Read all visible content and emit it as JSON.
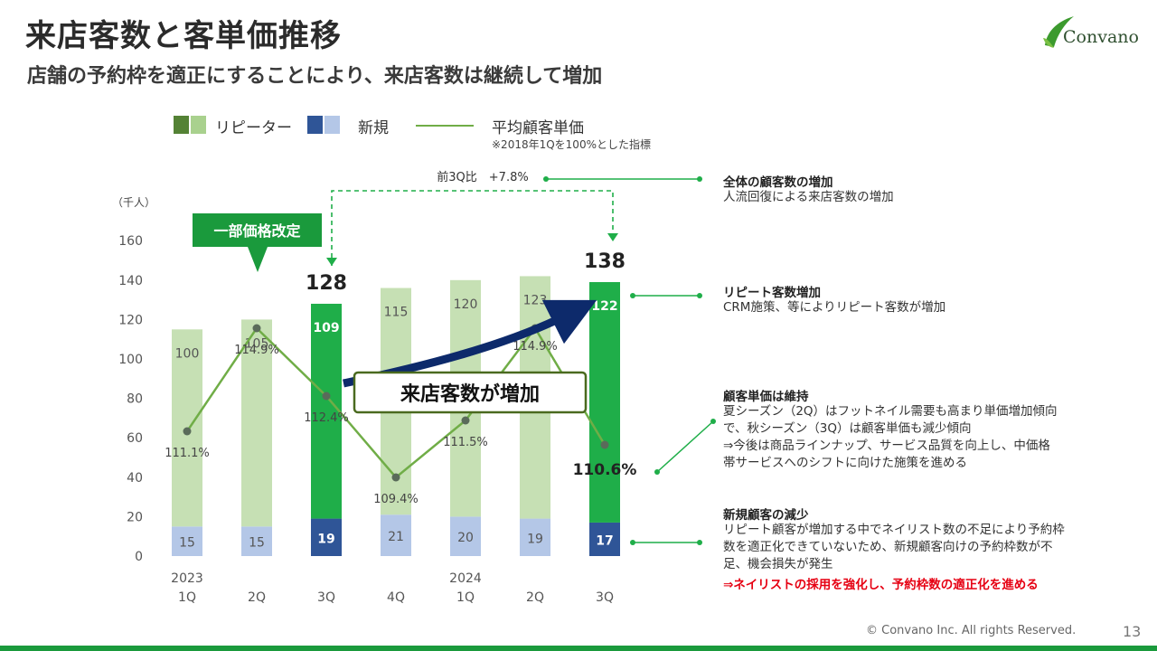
{
  "header": {
    "title": "来店客数と客単価推移",
    "subtitle": "店舗の予約枠を適正にすることにより、来店客数は継続して増加",
    "logo_text": "Convano"
  },
  "legend": {
    "repeater": "リピーター",
    "new": "新規",
    "avg_price": "平均顧客単価",
    "note": "※2018年1Qを100%とした指標"
  },
  "chart_data": {
    "type": "bar",
    "unit_label": "（千人）",
    "ylim": [
      0,
      160
    ],
    "yticks": [
      0,
      20,
      40,
      60,
      80,
      100,
      120,
      140,
      160
    ],
    "categories": [
      "1Q",
      "2Q",
      "3Q",
      "4Q",
      "1Q",
      "2Q",
      "3Q"
    ],
    "year_labels": [
      "2023",
      "",
      "",
      "",
      "2024",
      "",
      ""
    ],
    "series": [
      {
        "name": "新規",
        "values": [
          15,
          15,
          19,
          21,
          20,
          19,
          17
        ]
      },
      {
        "name": "リピーター",
        "values": [
          100,
          105,
          109,
          115,
          120,
          123,
          122
        ]
      }
    ],
    "totals": [
      "",
      "",
      "128",
      "",
      "",
      "",
      "138"
    ],
    "highlight": [
      false,
      false,
      true,
      false,
      false,
      false,
      true
    ],
    "line": {
      "name": "平均顧客単価",
      "values": [
        111.1,
        114.9,
        112.4,
        109.4,
        111.5,
        114.9,
        110.6
      ],
      "labels": [
        "111.1%",
        "114.9%",
        "112.4%",
        "109.4%",
        "111.5%",
        "114.9%",
        "110.6%"
      ]
    },
    "colors": {
      "rep_light": "#c6e0b4",
      "rep_dark": "#1fae49",
      "new_light": "#b4c7e7",
      "new_dark": "#2f5597",
      "line": "#70ad47",
      "marker": "#5a6b5a",
      "arrow": "#0d2a6b"
    }
  },
  "callouts": {
    "price_revision": "一部価格改定",
    "qoq": "前3Q比　+7.8%",
    "visitors_up": "来店客数が増加"
  },
  "annotations": [
    {
      "title": "全体の顧客数の増加",
      "lines": [
        "人流回復による来店客数の増加"
      ],
      "red": ""
    },
    {
      "title": "リピート客数増加",
      "lines": [
        "CRM施策、等によりリピート客数が増加"
      ],
      "red": ""
    },
    {
      "title": "顧客単価は維持",
      "lines": [
        "夏シーズン（2Q）はフットネイル需要も高まり単価増加傾向",
        "で、秋シーズン（3Q）は顧客単価も減少傾向",
        "⇒今後は商品ラインナップ、サービス品質を向上し、中価格",
        "帯サービスへのシフトに向けた施策を進める"
      ],
      "red": ""
    },
    {
      "title": "新規顧客の減少",
      "lines": [
        "リピート顧客が増加する中でネイリスト数の不足により予約枠",
        "数を適正化できていないため、新規顧客向けの予約枠数が不",
        "足、機会損失が発生"
      ],
      "red": "⇒ネイリストの採用を強化し、予約枠数の適正化を進める"
    }
  ],
  "footer": {
    "copyright": "© Convano Inc. All rights Reserved.",
    "page": "13"
  }
}
